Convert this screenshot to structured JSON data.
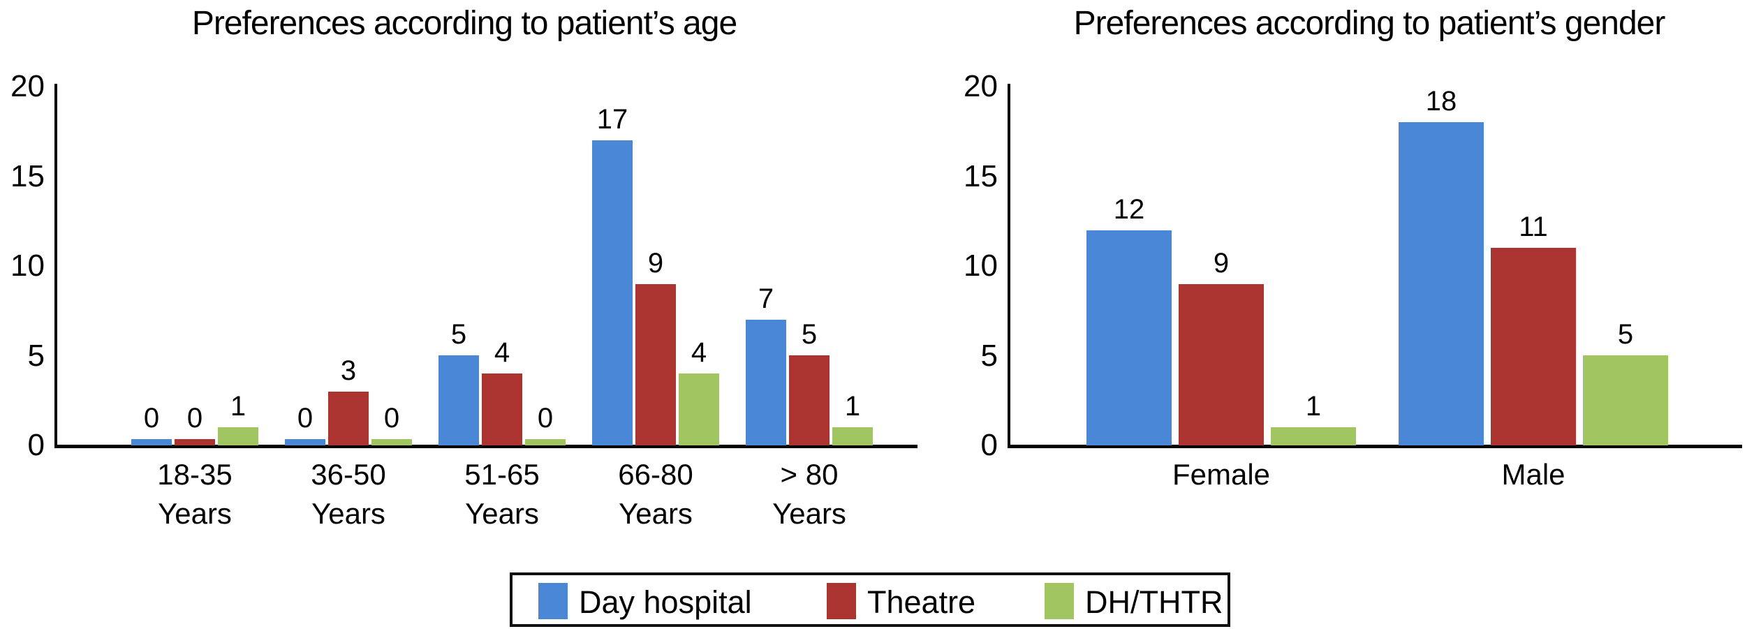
{
  "figure": {
    "background": "#ffffff",
    "text_color": "#000000",
    "axis_color": "#000000"
  },
  "chart_data": [
    {
      "type": "bar",
      "title": "Preferences according to patient’s age",
      "categories": [
        [
          "18-35",
          "Years"
        ],
        [
          "36-50",
          "Years"
        ],
        [
          "51-65",
          "Years"
        ],
        [
          "66-80",
          "Years"
        ],
        [
          "> 80",
          "Years"
        ]
      ],
      "series": [
        {
          "name": "Day hospital",
          "color": "#4a87d7",
          "values": [
            0,
            0,
            5,
            17,
            7
          ]
        },
        {
          "name": "Theatre",
          "color": "#ab3330",
          "values": [
            0,
            3,
            4,
            9,
            5
          ]
        },
        {
          "name": "DH/THTR",
          "color": "#a1c560",
          "values": [
            1,
            0,
            0,
            4,
            1
          ]
        }
      ],
      "xlabel": "",
      "ylabel": "",
      "ylim": [
        0,
        20
      ],
      "yticks": [
        0,
        5,
        10,
        15,
        20
      ],
      "grid": false,
      "bar_value_labels": true,
      "legend_position": "shared-bottom"
    },
    {
      "type": "bar",
      "title": "Preferences according to patient’s gender",
      "categories": [
        [
          "Female"
        ],
        [
          "Male"
        ]
      ],
      "series": [
        {
          "name": "Day hospital",
          "color": "#4a87d7",
          "values": [
            12,
            18
          ]
        },
        {
          "name": "Theatre",
          "color": "#ab3330",
          "values": [
            9,
            11
          ]
        },
        {
          "name": "DH/THTR",
          "color": "#a1c560",
          "values": [
            1,
            5
          ]
        }
      ],
      "xlabel": "",
      "ylabel": "",
      "ylim": [
        0,
        20
      ],
      "yticks": [
        0,
        5,
        10,
        15,
        20
      ],
      "grid": false,
      "bar_value_labels": true,
      "legend_position": "shared-bottom"
    }
  ],
  "legend": {
    "position": "bottom-center",
    "items": [
      {
        "label": "Day hospital",
        "color": "#4a87d7"
      },
      {
        "label": "Theatre",
        "color": "#ab3330"
      },
      {
        "label": "DH/THTR",
        "color": "#a1c560"
      }
    ]
  }
}
